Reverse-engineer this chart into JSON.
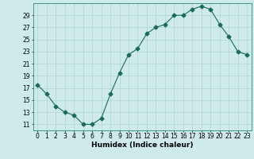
{
  "x": [
    0,
    1,
    2,
    3,
    4,
    5,
    6,
    7,
    8,
    9,
    10,
    11,
    12,
    13,
    14,
    15,
    16,
    17,
    18,
    19,
    20,
    21,
    22,
    23
  ],
  "y": [
    17.5,
    16.0,
    14.0,
    13.0,
    12.5,
    11.0,
    11.0,
    12.0,
    16.0,
    19.5,
    22.5,
    23.5,
    26.0,
    27.0,
    27.5,
    29.0,
    29.0,
    30.0,
    30.5,
    30.0,
    27.5,
    25.5,
    23.0,
    22.5
  ],
  "line_color": "#1a6b5a",
  "marker": "D",
  "marker_size": 2.5,
  "xlabel": "Humidex (Indice chaleur)",
  "ylabel": "",
  "xlim": [
    -0.5,
    23.5
  ],
  "ylim": [
    10,
    31
  ],
  "yticks": [
    11,
    13,
    15,
    17,
    19,
    21,
    23,
    25,
    27,
    29
  ],
  "xticks": [
    0,
    1,
    2,
    3,
    4,
    5,
    6,
    7,
    8,
    9,
    10,
    11,
    12,
    13,
    14,
    15,
    16,
    17,
    18,
    19,
    20,
    21,
    22,
    23
  ],
  "bg_color": "#ceeaea",
  "grid_color": "#afd4d4",
  "label_fontsize": 6.5,
  "tick_fontsize": 5.5
}
